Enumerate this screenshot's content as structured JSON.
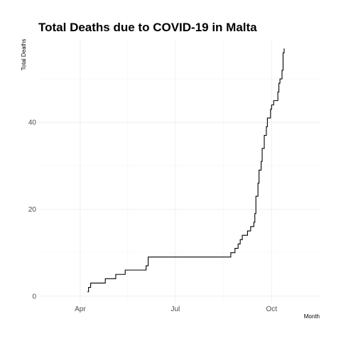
{
  "chart_data": {
    "type": "line",
    "title": "Total Deaths due to COVID-19 in Malta",
    "xlabel": "Month",
    "ylabel": "Total Deaths",
    "x_ticks": [
      {
        "label": "Apr",
        "date": "2020-04-01"
      },
      {
        "label": "Jul",
        "date": "2020-07-01"
      },
      {
        "label": "Oct",
        "date": "2020-10-01"
      }
    ],
    "y_ticks": [
      0,
      20,
      40
    ],
    "xlim": [
      "2020-02-21",
      "2020-11-16"
    ],
    "ylim": [
      -1.5,
      59
    ],
    "grid": true,
    "series": [
      {
        "points": [
          [
            "2020-04-08",
            1
          ],
          [
            "2020-04-09",
            2
          ],
          [
            "2020-04-11",
            3
          ],
          [
            "2020-04-25",
            4
          ],
          [
            "2020-05-05",
            5
          ],
          [
            "2020-05-14",
            6
          ],
          [
            "2020-06-03",
            7
          ],
          [
            "2020-06-05",
            9
          ],
          [
            "2020-08-23",
            10
          ],
          [
            "2020-08-27",
            11
          ],
          [
            "2020-08-30",
            12
          ],
          [
            "2020-09-01",
            13
          ],
          [
            "2020-09-03",
            14
          ],
          [
            "2020-09-08",
            15
          ],
          [
            "2020-09-11",
            16
          ],
          [
            "2020-09-14",
            17
          ],
          [
            "2020-09-15",
            19
          ],
          [
            "2020-09-16",
            23
          ],
          [
            "2020-09-18",
            26
          ],
          [
            "2020-09-19",
            29
          ],
          [
            "2020-09-21",
            31
          ],
          [
            "2020-09-22",
            34
          ],
          [
            "2020-09-24",
            37
          ],
          [
            "2020-09-26",
            39
          ],
          [
            "2020-09-27",
            41
          ],
          [
            "2020-09-30",
            43
          ],
          [
            "2020-10-01",
            44
          ],
          [
            "2020-10-03",
            45
          ],
          [
            "2020-10-07",
            47
          ],
          [
            "2020-10-08",
            49
          ],
          [
            "2020-10-09",
            50
          ],
          [
            "2020-10-11",
            52
          ],
          [
            "2020-10-12",
            56
          ],
          [
            "2020-10-13",
            57
          ]
        ]
      }
    ]
  }
}
